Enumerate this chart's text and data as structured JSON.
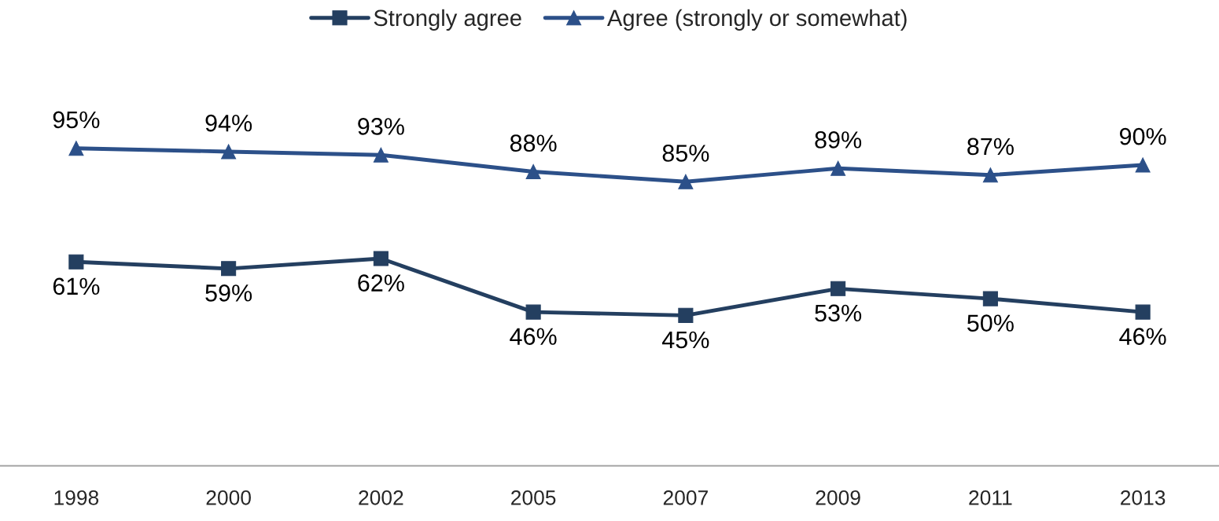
{
  "chart_data": {
    "type": "line",
    "categories": [
      "1998",
      "2000",
      "2002",
      "2005",
      "2007",
      "2009",
      "2011",
      "2013"
    ],
    "series": [
      {
        "name": "Strongly agree",
        "color": "#243f60",
        "marker": "square",
        "values": [
          61,
          59,
          62,
          46,
          45,
          53,
          50,
          46
        ],
        "value_labels": [
          "61%",
          "59%",
          "62%",
          "46%",
          "45%",
          "53%",
          "50%",
          "46%"
        ]
      },
      {
        "name": "Agree (strongly or somewhat)",
        "color": "#2c5089",
        "marker": "triangle",
        "values": [
          95,
          94,
          93,
          88,
          85,
          89,
          87,
          90
        ],
        "value_labels": [
          "95%",
          "94%",
          "93%",
          "88%",
          "85%",
          "89%",
          "87%",
          "90%"
        ]
      }
    ],
    "grid": false,
    "legend": "top",
    "line_style": "solid"
  }
}
